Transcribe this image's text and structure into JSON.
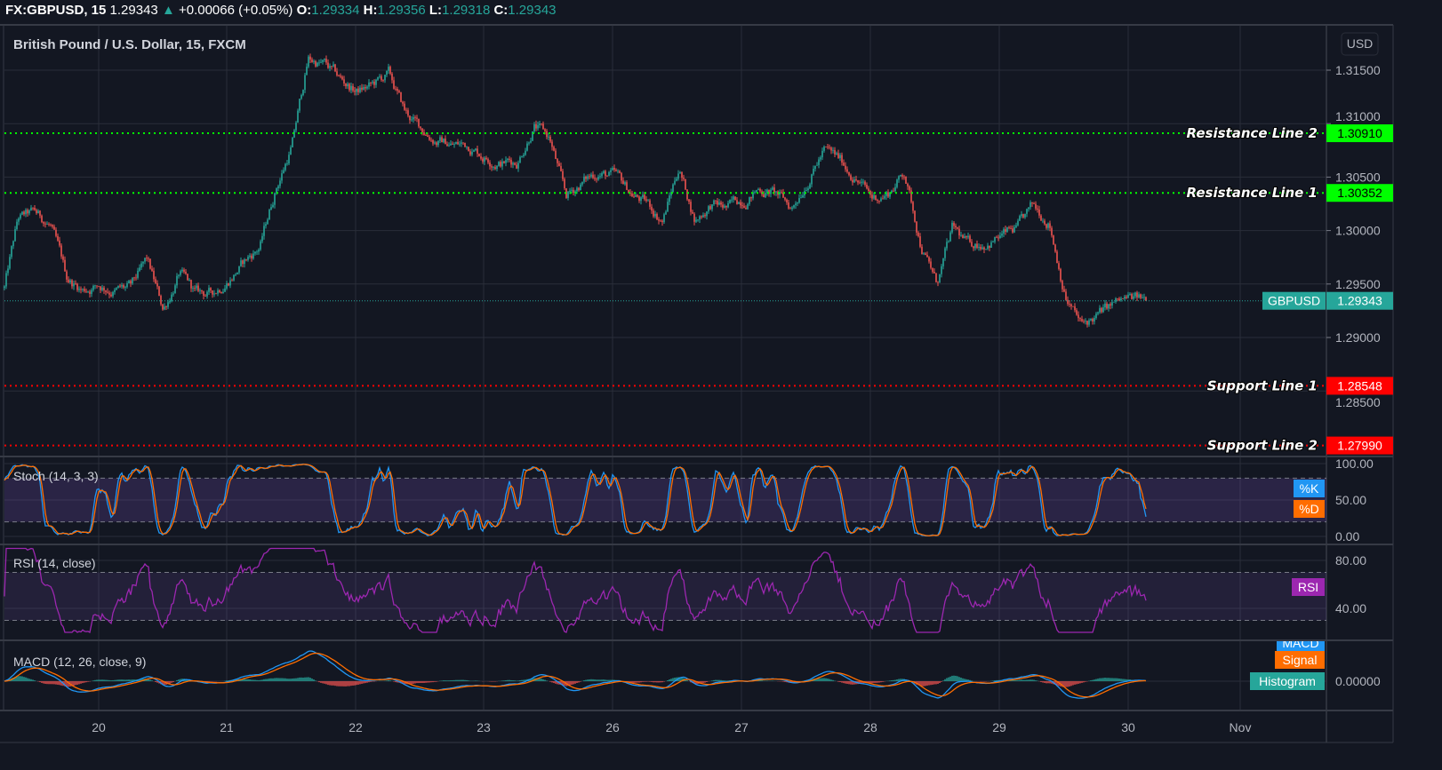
{
  "header": {
    "symbol": "FX:GBPUSD, 15",
    "last": "1.29343",
    "change_icon": "triangle-up-icon",
    "change": "+0.00066 (+0.05%)",
    "o_label": "O:",
    "o": "1.29334",
    "h_label": "H:",
    "h": "1.29356",
    "l_label": "L:",
    "l": "1.29318",
    "c_label": "C:",
    "c": "1.29343"
  },
  "colors": {
    "background": "#131722",
    "grid": "#2a2e39",
    "up": "#26a69a",
    "down": "#ef5350",
    "resistance": "#00ff00",
    "support": "#ff0000",
    "stoch_k": "#2196f3",
    "stoch_d": "#ff6d00",
    "rsi": "#9c27b0",
    "macd": "#2196f3",
    "signal": "#ff6d00",
    "histogram": "#26a69a"
  },
  "chart_data": [
    {
      "type": "candlestick",
      "title": "British Pound / U.S. Dollar, 15, FXCM",
      "currency_label": "USD",
      "y_ticks": [
        "1.31500",
        "1.31000",
        "1.30500",
        "1.30000",
        "1.29500",
        "1.29000",
        "1.28500"
      ],
      "ylim": [
        1.2775,
        1.3185
      ],
      "x_ticks": [
        "20",
        "21",
        "22",
        "23",
        "26",
        "27",
        "28",
        "29",
        "30",
        "Nov"
      ],
      "grid": true,
      "last_price": {
        "label": "GBPUSD",
        "value": "1.29343",
        "price": 1.29343
      },
      "horizontal_lines": [
        {
          "label": "Resistance Line 2",
          "value": "1.30910",
          "price": 1.3091,
          "color": "#00ff00"
        },
        {
          "label": "Resistance Line 1",
          "value": "1.30352",
          "price": 1.30352,
          "color": "#00ff00"
        },
        {
          "label": "Support Line 1",
          "value": "1.28548",
          "price": 1.28548,
          "color": "#ff0000"
        },
        {
          "label": "Support Line 2",
          "value": "1.27990",
          "price": 1.2799,
          "color": "#ff0000"
        }
      ],
      "price_path": [
        [
          "Oct 19 06:00",
          1.2935
        ],
        [
          "Oct 19 09:00",
          1.301
        ],
        [
          "Oct 19 12:00",
          1.3015
        ],
        [
          "Oct 19 15:00",
          1.3005
        ],
        [
          "Oct 19 18:00",
          1.2955
        ],
        [
          "Oct 19 21:00",
          1.2945
        ],
        [
          "Oct 20 00:00",
          1.295
        ],
        [
          "Oct 20 03:00",
          1.2945
        ],
        [
          "Oct 20 06:00",
          1.2945
        ],
        [
          "Oct 20 09:00",
          1.297
        ],
        [
          "Oct 20 12:00",
          1.2925
        ],
        [
          "Oct 20 15:00",
          1.296
        ],
        [
          "Oct 20 18:00",
          1.294
        ],
        [
          "Oct 20 21:00",
          1.294
        ],
        [
          "Oct 21 00:00",
          1.2955
        ],
        [
          "Oct 21 03:00",
          1.297
        ],
        [
          "Oct 21 06:00",
          1.2985
        ],
        [
          "Oct 21 09:00",
          1.304
        ],
        [
          "Oct 21 12:00",
          1.308
        ],
        [
          "Oct 21 15:00",
          1.316
        ],
        [
          "Oct 21 18:00",
          1.3155
        ],
        [
          "Oct 21 21:00",
          1.314
        ],
        [
          "Oct 22 00:00",
          1.313
        ],
        [
          "Oct 22 03:00",
          1.3135
        ],
        [
          "Oct 22 06:00",
          1.3145
        ],
        [
          "Oct 22 09:00",
          1.311
        ],
        [
          "Oct 22 12:00",
          1.3095
        ],
        [
          "Oct 22 15:00",
          1.3085
        ],
        [
          "Oct 22 18:00",
          1.308
        ],
        [
          "Oct 22 21:00",
          1.308
        ],
        [
          "Oct 23 00:00",
          1.307
        ],
        [
          "Oct 23 03:00",
          1.3065
        ],
        [
          "Oct 23 06:00",
          1.3065
        ],
        [
          "Oct 23 09:00",
          1.31
        ],
        [
          "Oct 23 12:00",
          1.3085
        ],
        [
          "Oct 23 15:00",
          1.303
        ],
        [
          "Oct 23 18:00",
          1.3045
        ],
        [
          "Oct 23 21:00",
          1.3055
        ],
        [
          "Oct 26 00:00",
          1.305
        ],
        [
          "Oct 26 03:00",
          1.3035
        ],
        [
          "Oct 26 06:00",
          1.3025
        ],
        [
          "Oct 26 09:00",
          1.301
        ],
        [
          "Oct 26 12:00",
          1.306
        ],
        [
          "Oct 26 15:00",
          1.301
        ],
        [
          "Oct 26 18:00",
          1.3025
        ],
        [
          "Oct 26 21:00",
          1.302
        ],
        [
          "Oct 27 00:00",
          1.303
        ],
        [
          "Oct 27 03:00",
          1.304
        ],
        [
          "Oct 27 06:00",
          1.3035
        ],
        [
          "Oct 27 09:00",
          1.302
        ],
        [
          "Oct 27 12:00",
          1.305
        ],
        [
          "Oct 27 15:00",
          1.3075
        ],
        [
          "Oct 27 18:00",
          1.3065
        ],
        [
          "Oct 27 21:00",
          1.305
        ],
        [
          "Oct 28 00:00",
          1.303
        ],
        [
          "Oct 28 03:00",
          1.3035
        ],
        [
          "Oct 28 06:00",
          1.3055
        ],
        [
          "Oct 28 09:00",
          1.299
        ],
        [
          "Oct 28 12:00",
          1.295
        ],
        [
          "Oct 28 15:00",
          1.3
        ],
        [
          "Oct 28 18:00",
          1.2985
        ],
        [
          "Oct 28 21:00",
          1.299
        ],
        [
          "Oct 29 00:00",
          1.2995
        ],
        [
          "Oct 29 03:00",
          1.3
        ],
        [
          "Oct 29 06:00",
          1.302
        ],
        [
          "Oct 29 09:00",
          1.301
        ],
        [
          "Oct 29 12:00",
          1.294
        ],
        [
          "Oct 29 15:00",
          1.291
        ],
        [
          "Oct 29 18:00",
          1.292
        ],
        [
          "Oct 29 21:00",
          1.293
        ],
        [
          "Oct 30 00:00",
          1.2935
        ],
        [
          "Oct 30 03:15",
          1.29343
        ]
      ]
    },
    {
      "type": "line",
      "title": "Stoch (14, 3, 3)",
      "y_ticks": [
        "100.00",
        "50.00",
        "0.00"
      ],
      "ylim": [
        0,
        100
      ],
      "bands": [
        20,
        80
      ],
      "legend": [
        {
          "name": "%K",
          "color": "#2196f3"
        },
        {
          "name": "%D",
          "color": "#ff6d00"
        }
      ]
    },
    {
      "type": "line",
      "title": "RSI (14, close)",
      "y_ticks": [
        "80.00",
        "40.00"
      ],
      "bands": [
        30,
        70
      ],
      "legend": [
        {
          "name": "RSI",
          "color": "#9c27b0"
        }
      ]
    },
    {
      "type": "line",
      "title": "MACD (12, 26, close, 9)",
      "y_ticks": [
        "0.00000"
      ],
      "legend": [
        {
          "name": "MACD",
          "color": "#2196f3"
        },
        {
          "name": "Signal",
          "color": "#ff6d00"
        },
        {
          "name": "Histogram",
          "color": "#26a69a"
        }
      ]
    }
  ]
}
